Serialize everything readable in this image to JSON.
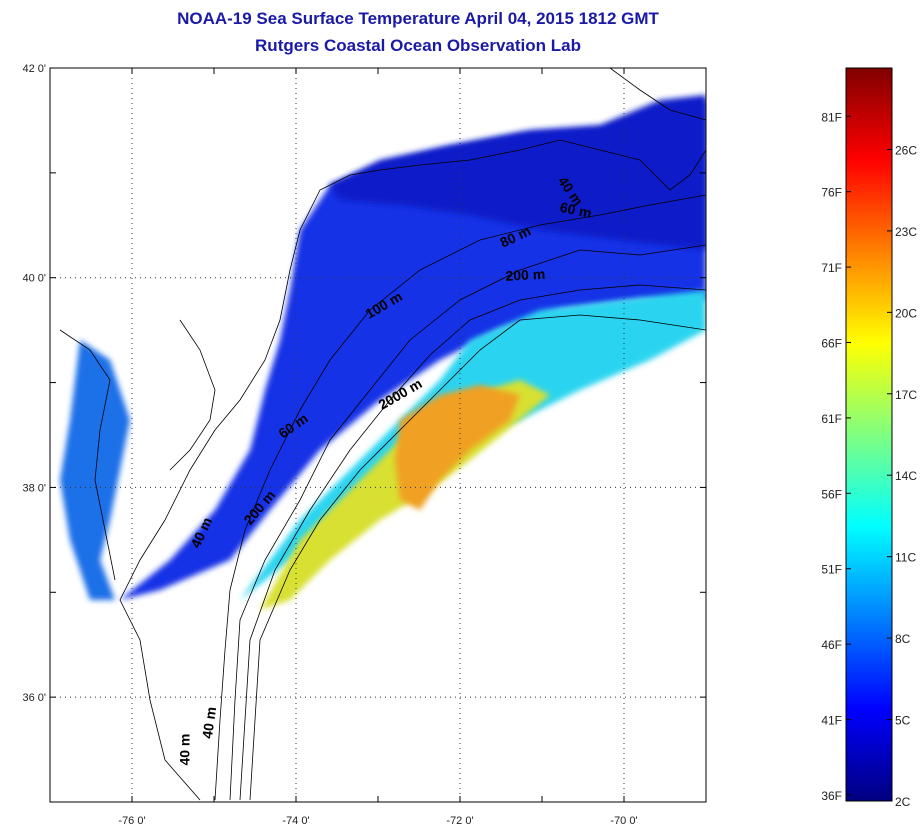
{
  "title": {
    "line1": "NOAA-19 Sea Surface Temperature April 04, 2015 1812 GMT",
    "line2": "Rutgers Coastal Ocean Observation Lab"
  },
  "map": {
    "lon_range": [
      -77,
      -69
    ],
    "lat_range": [
      35,
      42
    ],
    "lon_ticks": [
      {
        "value": -76,
        "label": "-76 0'"
      },
      {
        "value": -74,
        "label": "-74 0'"
      },
      {
        "value": -72,
        "label": "-72 0'"
      },
      {
        "value": -70,
        "label": "-70 0'"
      }
    ],
    "lat_ticks": [
      {
        "value": 42,
        "label": "42 0'"
      },
      {
        "value": 40,
        "label": "40 0'"
      },
      {
        "value": 38,
        "label": "38 0'"
      },
      {
        "value": 36,
        "label": "36 0'"
      }
    ],
    "grid": "dotted",
    "contour_labels": [
      {
        "text": "40 m",
        "lon": -70.7,
        "lat": 40.8,
        "angle": 55
      },
      {
        "text": "60 m",
        "lon": -70.6,
        "lat": 40.6,
        "angle": 12
      },
      {
        "text": "80 m",
        "lon": -71.3,
        "lat": 40.35,
        "angle": -25
      },
      {
        "text": "200 m",
        "lon": -71.2,
        "lat": 39.98,
        "angle": -3
      },
      {
        "text": "100 m",
        "lon": -72.9,
        "lat": 39.7,
        "angle": -30
      },
      {
        "text": "2000 m",
        "lon": -72.7,
        "lat": 38.85,
        "angle": -30
      },
      {
        "text": "60 m",
        "lon": -74.0,
        "lat": 38.55,
        "angle": -35
      },
      {
        "text": "200 m",
        "lon": -74.4,
        "lat": 37.78,
        "angle": -50
      },
      {
        "text": "40 m",
        "lon": -75.1,
        "lat": 37.55,
        "angle": -65
      },
      {
        "text": "40 m",
        "lon": -75.0,
        "lat": 35.75,
        "angle": -82
      },
      {
        "text": "40 m",
        "lon": -75.3,
        "lat": 35.5,
        "angle": -90
      }
    ]
  },
  "colorbar": {
    "fahrenheit_labels": [
      {
        "value": 81,
        "label": "81F"
      },
      {
        "value": 76,
        "label": "76F"
      },
      {
        "value": 71,
        "label": "71F"
      },
      {
        "value": 66,
        "label": "66F"
      },
      {
        "value": 61,
        "label": "61F"
      },
      {
        "value": 56,
        "label": "56F"
      },
      {
        "value": 51,
        "label": "51F"
      },
      {
        "value": 46,
        "label": "46F"
      },
      {
        "value": 41,
        "label": "41F"
      },
      {
        "value": 36,
        "label": "36F"
      }
    ],
    "celsius_labels": [
      {
        "value": 26,
        "label": "26C"
      },
      {
        "value": 23,
        "label": "23C"
      },
      {
        "value": 20,
        "label": "20C"
      },
      {
        "value": 17,
        "label": "17C"
      },
      {
        "value": 14,
        "label": "14C"
      },
      {
        "value": 11,
        "label": "11C"
      },
      {
        "value": 8,
        "label": "8C"
      },
      {
        "value": 5,
        "label": "5C"
      },
      {
        "value": 2,
        "label": "2C"
      }
    ],
    "range_c": [
      2,
      29
    ],
    "stops": [
      "#000080",
      "#0000ff",
      "#0080ff",
      "#00ffff",
      "#80ff80",
      "#ffff00",
      "#ff8000",
      "#ff0000",
      "#800000"
    ]
  }
}
